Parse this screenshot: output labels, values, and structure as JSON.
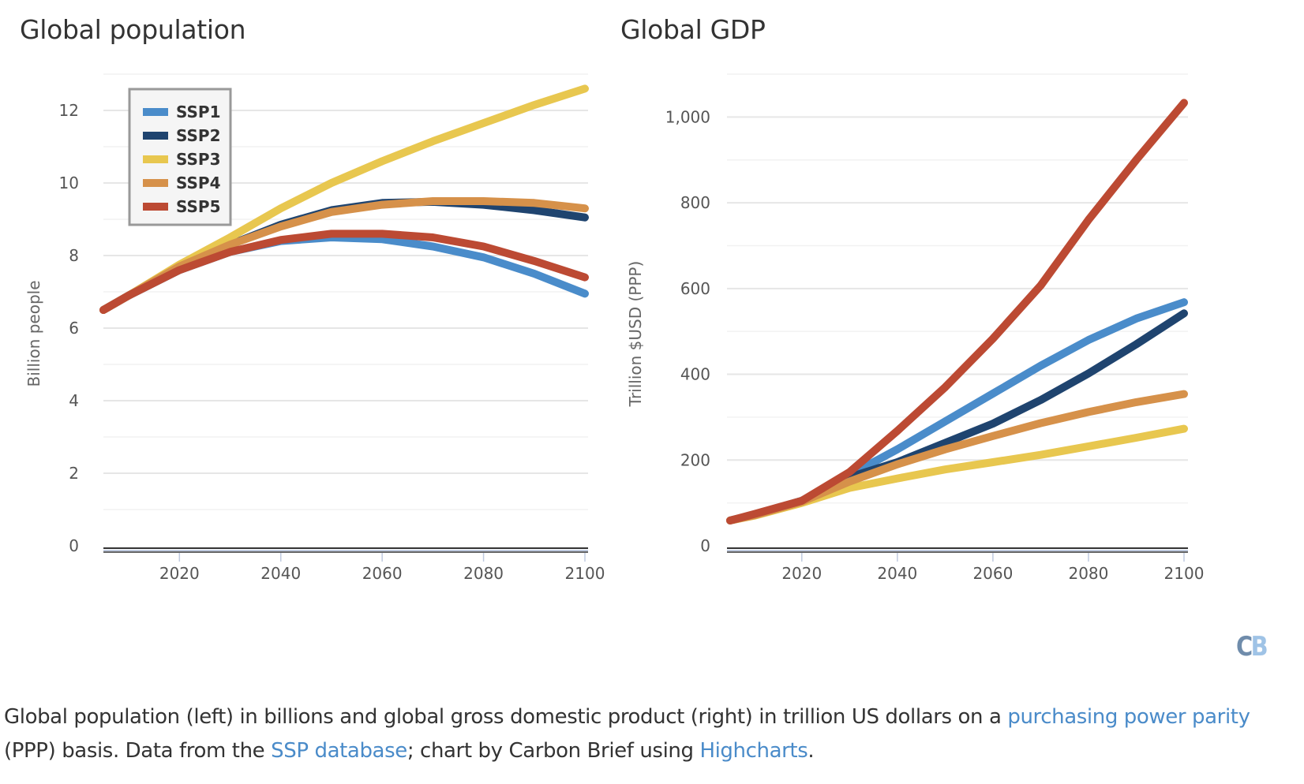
{
  "caption": {
    "t1": "Global population (left) in billions and global gross domestic product (right) in trillion US dollars on a ",
    "link1": "purchasing power parity",
    "t2": " (PPP) basis. Data from the ",
    "link2": "SSP database",
    "t3": "; chart by Carbon Brief using ",
    "link3": "Highcharts",
    "t4": "."
  },
  "logo": {
    "c": "C",
    "b": "B"
  },
  "colors": {
    "SSP1": "#4a8cca",
    "SSP2": "#1f446f",
    "SSP3": "#e8c74f",
    "SSP4": "#d6914a",
    "SSP5": "#bc4a33"
  },
  "chart_data": [
    {
      "type": "line",
      "title": "Global population",
      "xlabel": "",
      "ylabel": "Billion people",
      "xlim": [
        2005,
        2100
      ],
      "ylim": [
        0,
        13
      ],
      "x_ticks": [
        2020,
        2040,
        2060,
        2080,
        2100
      ],
      "y_ticks": [
        0,
        2,
        4,
        6,
        8,
        10,
        12
      ],
      "grid": true,
      "legend": {
        "placement": "top-left",
        "entries": [
          "SSP1",
          "SSP2",
          "SSP3",
          "SSP4",
          "SSP5"
        ]
      },
      "x": [
        2005,
        2010,
        2020,
        2030,
        2040,
        2050,
        2060,
        2070,
        2080,
        2090,
        2100
      ],
      "series": [
        {
          "name": "SSP1",
          "values": [
            6.5,
            6.9,
            7.6,
            8.1,
            8.4,
            8.5,
            8.45,
            8.25,
            7.95,
            7.5,
            6.95
          ]
        },
        {
          "name": "SSP2",
          "values": [
            6.5,
            6.9,
            7.7,
            8.3,
            8.85,
            9.25,
            9.45,
            9.48,
            9.4,
            9.25,
            9.05
          ]
        },
        {
          "name": "SSP3",
          "values": [
            6.5,
            6.9,
            7.75,
            8.5,
            9.3,
            10.0,
            10.6,
            11.15,
            11.65,
            12.15,
            12.6
          ]
        },
        {
          "name": "SSP4",
          "values": [
            6.5,
            6.9,
            7.7,
            8.3,
            8.8,
            9.2,
            9.4,
            9.5,
            9.5,
            9.45,
            9.3
          ]
        },
        {
          "name": "SSP5",
          "values": [
            6.5,
            6.9,
            7.6,
            8.1,
            8.43,
            8.6,
            8.6,
            8.5,
            8.25,
            7.85,
            7.4
          ]
        }
      ]
    },
    {
      "type": "line",
      "title": "Global GDP",
      "xlabel": "",
      "ylabel": "Trillion $USD (PPP)",
      "xlim": [
        2005,
        2100
      ],
      "ylim": [
        0,
        1100
      ],
      "x_ticks": [
        2020,
        2040,
        2060,
        2080,
        2100
      ],
      "y_ticks": [
        0,
        200,
        400,
        600,
        800,
        1000
      ],
      "y_tick_labels": [
        "0",
        "200",
        "400",
        "600",
        "800",
        "1,000"
      ],
      "grid": true,
      "x": [
        2005,
        2010,
        2020,
        2030,
        2040,
        2050,
        2060,
        2070,
        2080,
        2090,
        2100
      ],
      "series": [
        {
          "name": "SSP1",
          "values": [
            59,
            72,
            105,
            165,
            225,
            290,
            355,
            420,
            480,
            530,
            568
          ]
        },
        {
          "name": "SSP2",
          "values": [
            59,
            72,
            105,
            160,
            195,
            240,
            285,
            340,
            402,
            470,
            542
          ]
        },
        {
          "name": "SSP3",
          "values": [
            59,
            70,
            100,
            135,
            157,
            178,
            195,
            212,
            232,
            252,
            273
          ]
        },
        {
          "name": "SSP4",
          "values": [
            59,
            71,
            103,
            150,
            190,
            225,
            256,
            286,
            312,
            335,
            354
          ]
        },
        {
          "name": "SSP5",
          "values": [
            59,
            74,
            105,
            172,
            268,
            370,
            483,
            607,
            760,
            900,
            1033
          ]
        }
      ]
    }
  ]
}
